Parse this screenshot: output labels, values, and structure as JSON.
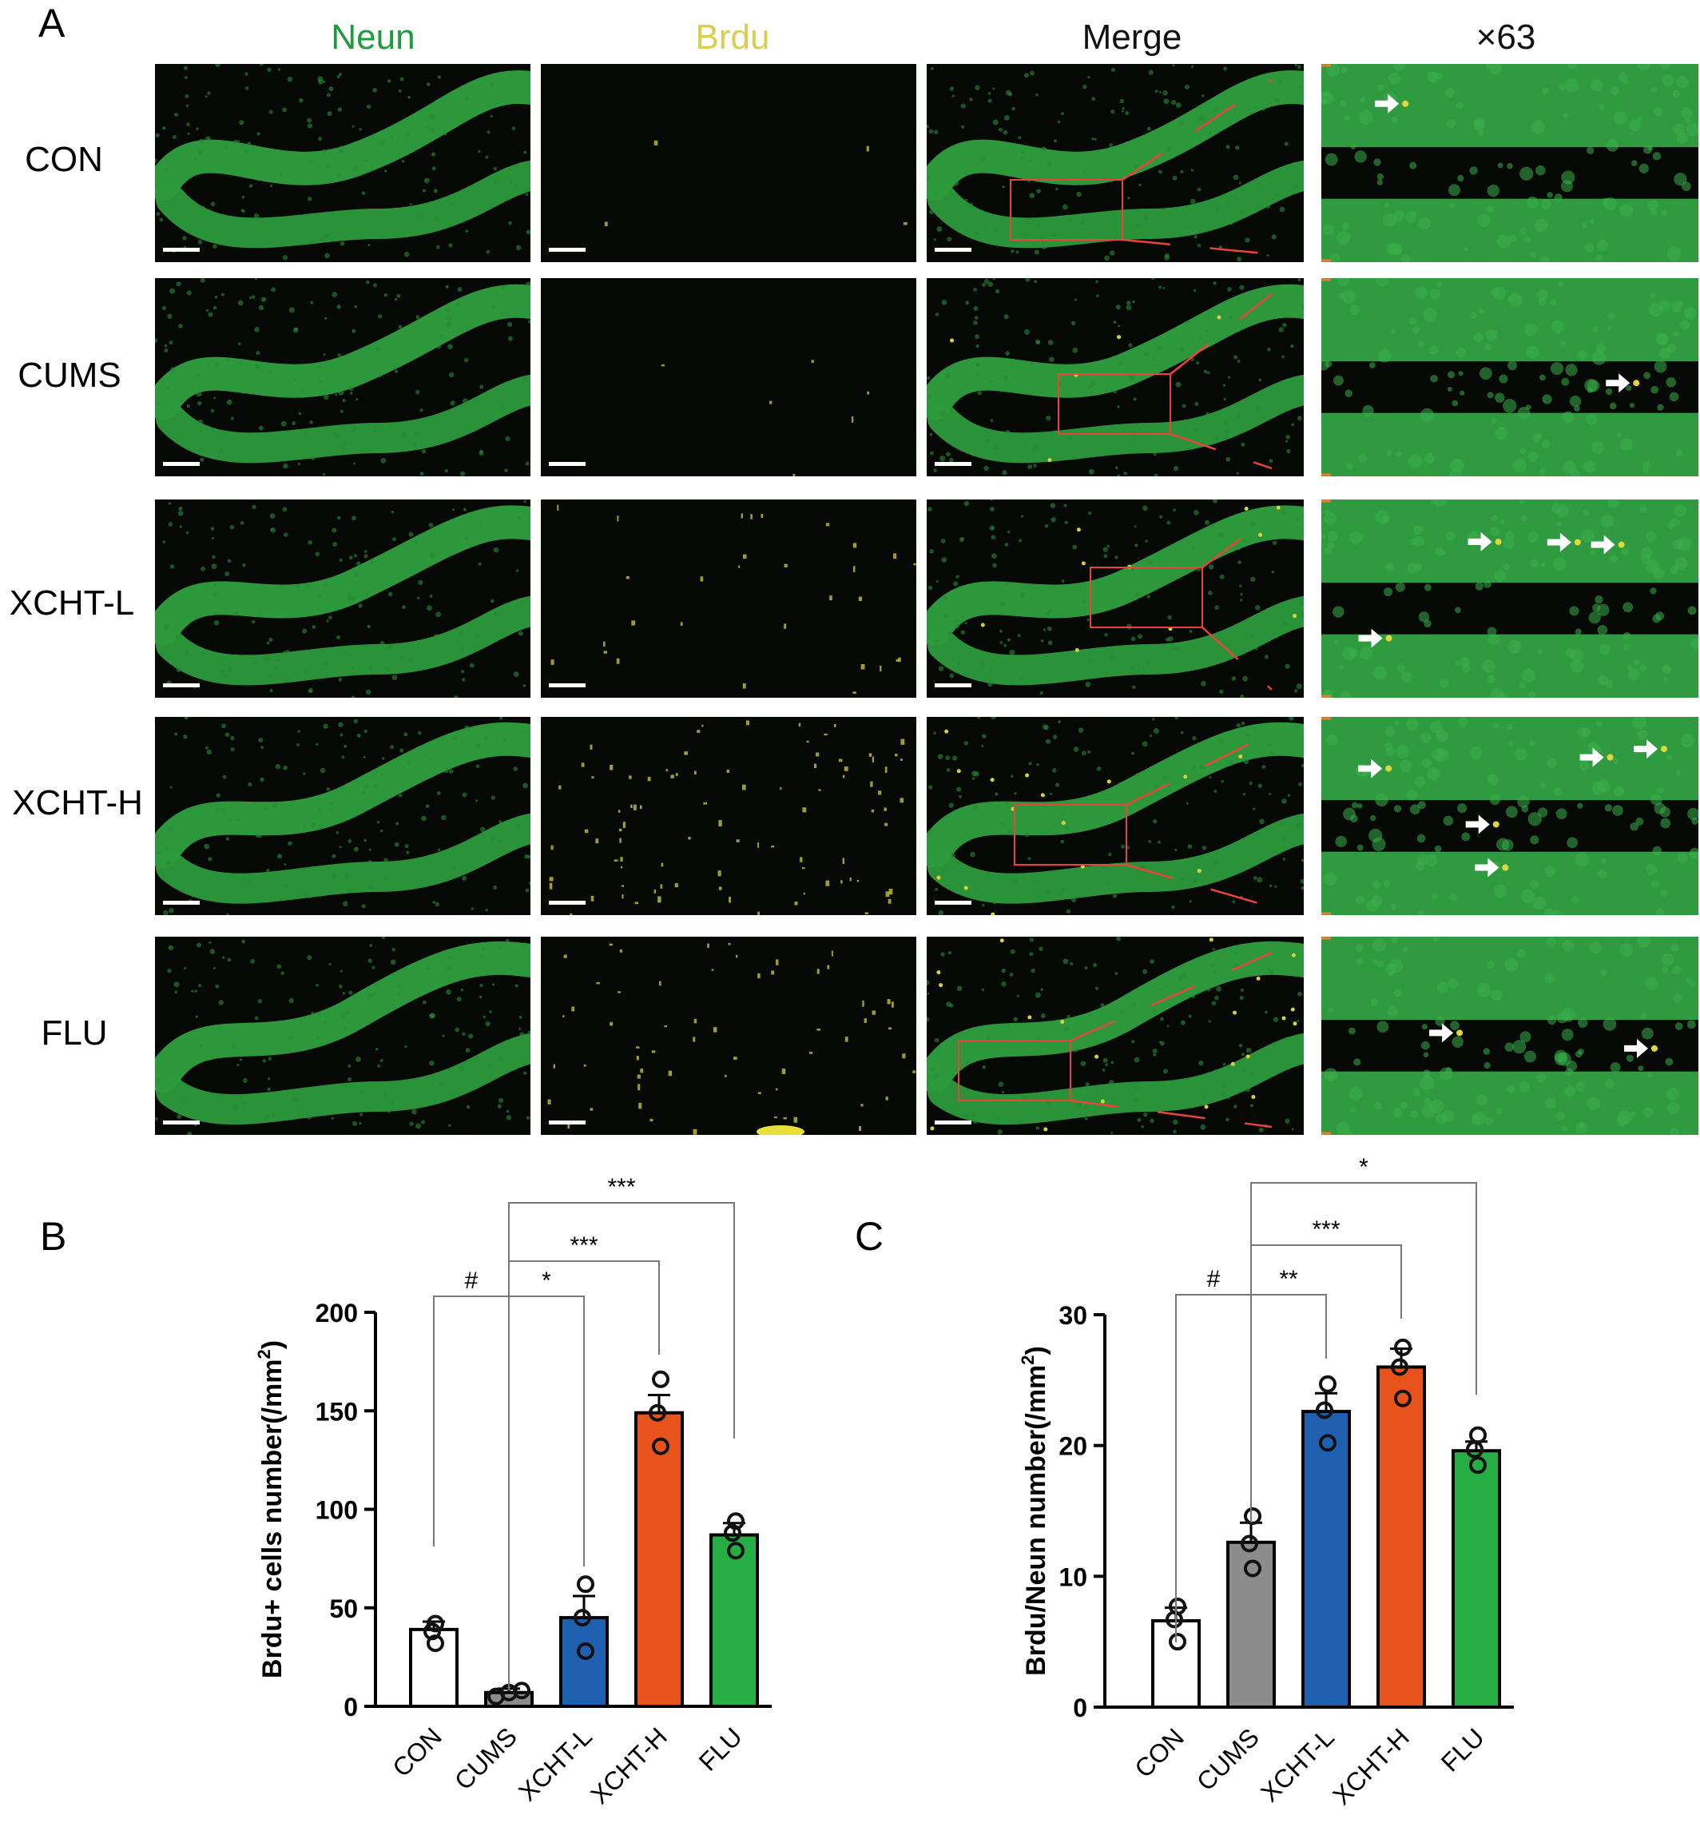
{
  "figure": {
    "panel_a_label": "A",
    "panel_b_label": "B",
    "panel_c_label": "C",
    "columns": [
      {
        "label": "Neun",
        "color": "#1e9b3c"
      },
      {
        "label": "Brdu",
        "color": "#d8cf52"
      },
      {
        "label": "Merge",
        "color": "#111111"
      },
      {
        "label": "×63",
        "color": "#111111"
      }
    ],
    "rows": [
      "CON",
      "CUMS",
      "XCHT-L",
      "XCHT-H",
      "FLU"
    ]
  },
  "chart_data": [
    {
      "type": "bar",
      "panel": "B",
      "ylabel": "Brdu+ cells number(/mm²)",
      "ylabel_main": "Brdu+ cells number(/mm",
      "ylabel_sup": "2",
      "ylabel_tail": ")",
      "ylim": [
        0,
        200
      ],
      "yticks": [
        "0",
        "50",
        "100",
        "150",
        "200"
      ],
      "categories": [
        "CON",
        "CUMS",
        "XCHT-L",
        "XCHT-H",
        "FLU"
      ],
      "values": [
        39,
        7,
        45,
        149,
        87
      ],
      "errors": [
        4,
        2,
        11,
        9,
        6
      ],
      "points": [
        [
          42,
          38,
          32
        ],
        [
          5,
          7,
          8
        ],
        [
          62,
          45,
          28
        ],
        [
          166,
          149,
          132
        ],
        [
          94,
          88,
          79
        ]
      ],
      "colors": [
        "#ffffff",
        "#8c8c8c",
        "#1f5fb0",
        "#e8531c",
        "#26ad43"
      ],
      "significance": [
        {
          "from": 0,
          "to": 1,
          "label": "#"
        },
        {
          "from": 1,
          "to": 2,
          "label": "*"
        },
        {
          "from": 1,
          "to": 3,
          "label": "***"
        },
        {
          "from": 1,
          "to": 4,
          "label": "***"
        }
      ]
    },
    {
      "type": "bar",
      "panel": "C",
      "ylabel": "Brdu/Neun  number(/mm²)",
      "ylabel_main": "Brdu/Neun  number(/mm",
      "ylabel_sup": "2",
      "ylabel_tail": ")",
      "ylim": [
        0,
        30
      ],
      "yticks": [
        "0",
        "10",
        "20",
        "30"
      ],
      "categories": [
        "CON",
        "CUMS",
        "XCHT-L",
        "XCHT-H",
        "FLU"
      ],
      "values": [
        6.6,
        12.6,
        22.6,
        26.0,
        19.6
      ],
      "errors": [
        1.0,
        1.5,
        1.4,
        1.4,
        0.7
      ],
      "points": [
        [
          7.7,
          6.7,
          5.0
        ],
        [
          14.6,
          12.5,
          10.6
        ],
        [
          24.7,
          22.7,
          20.2
        ],
        [
          27.5,
          26.0,
          23.6
        ],
        [
          20.8,
          19.7,
          18.5
        ]
      ],
      "colors": [
        "#ffffff",
        "#8c8c8c",
        "#1f5fb0",
        "#e8531c",
        "#26ad43"
      ],
      "significance": [
        {
          "from": 0,
          "to": 1,
          "label": "#"
        },
        {
          "from": 1,
          "to": 2,
          "label": "**"
        },
        {
          "from": 1,
          "to": 3,
          "label": "***"
        },
        {
          "from": 1,
          "to": 4,
          "label": "*"
        }
      ]
    }
  ]
}
